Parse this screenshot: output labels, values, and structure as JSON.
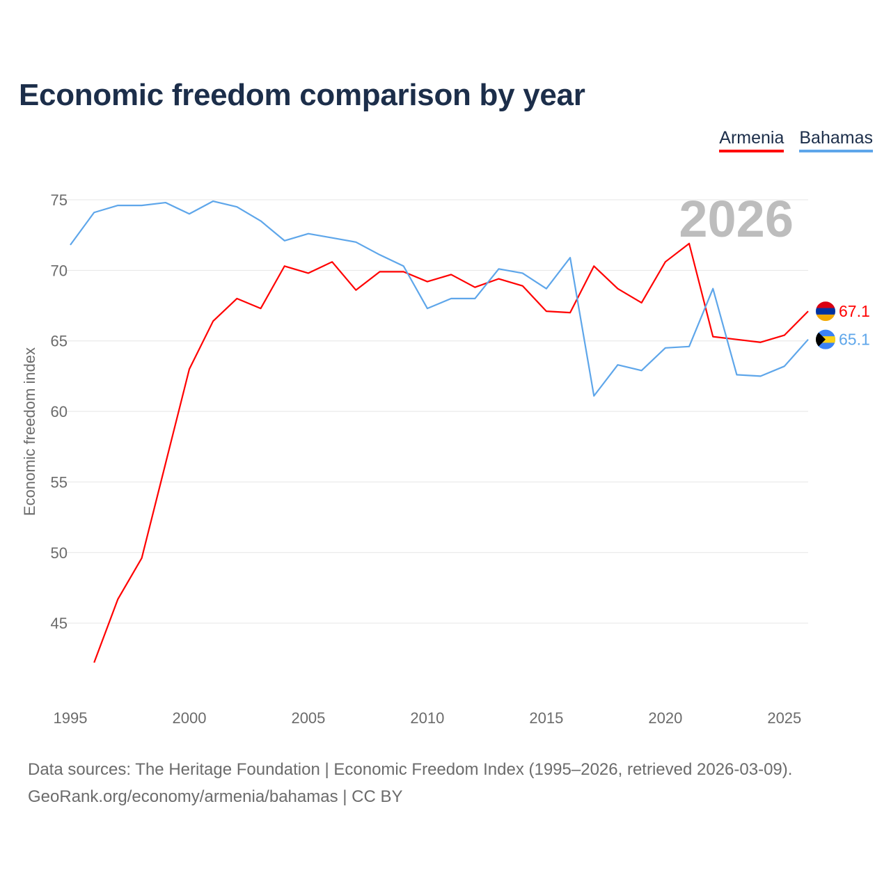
{
  "title": "Economic freedom comparison by year",
  "footer": {
    "line1": "Data sources: The Heritage Foundation | Economic Freedom Index (1995–2026, retrieved 2026-03-09).",
    "line2": "GeoRank.org/economy/armenia/bahamas | CC BY"
  },
  "chart_data": {
    "type": "line",
    "title": "Economic freedom comparison by year",
    "xlabel": "",
    "ylabel": "Economic freedom index",
    "year_watermark": "2026",
    "xlim": [
      1995,
      2026
    ],
    "ylim": [
      41,
      76
    ],
    "xticks": [
      "1995",
      "2000",
      "2005",
      "2010",
      "2015",
      "2020",
      "2025"
    ],
    "yticks": [
      "45",
      "50",
      "55",
      "60",
      "65",
      "70",
      "75"
    ],
    "grid": true,
    "legend_position": "top-right",
    "x": [
      1995,
      1996,
      1997,
      1998,
      1999,
      2000,
      2001,
      2002,
      2003,
      2004,
      2005,
      2006,
      2007,
      2008,
      2009,
      2010,
      2011,
      2012,
      2013,
      2014,
      2015,
      2016,
      2017,
      2018,
      2019,
      2020,
      2021,
      2022,
      2023,
      2024,
      2025,
      2026
    ],
    "series": [
      {
        "name": "Armenia",
        "color": "#ff0000",
        "end_label": "67.1",
        "values": [
          null,
          42.2,
          46.7,
          49.6,
          56.3,
          63.0,
          66.4,
          68.0,
          67.3,
          70.3,
          69.8,
          70.6,
          68.6,
          69.9,
          69.9,
          69.2,
          69.7,
          68.8,
          69.4,
          68.9,
          67.1,
          67.0,
          70.3,
          68.7,
          67.7,
          70.6,
          71.9,
          65.3,
          65.1,
          64.9,
          65.4,
          67.1
        ]
      },
      {
        "name": "Bahamas",
        "color": "#5ea6ea",
        "end_label": "65.1",
        "values": [
          71.8,
          74.1,
          74.6,
          74.6,
          74.8,
          74.0,
          74.9,
          74.5,
          73.5,
          72.1,
          72.6,
          72.3,
          72.0,
          71.1,
          70.3,
          67.3,
          68.0,
          68.0,
          70.1,
          69.8,
          68.7,
          70.9,
          61.1,
          63.3,
          62.9,
          64.5,
          64.6,
          68.7,
          62.6,
          62.5,
          63.2,
          65.1
        ]
      }
    ]
  }
}
